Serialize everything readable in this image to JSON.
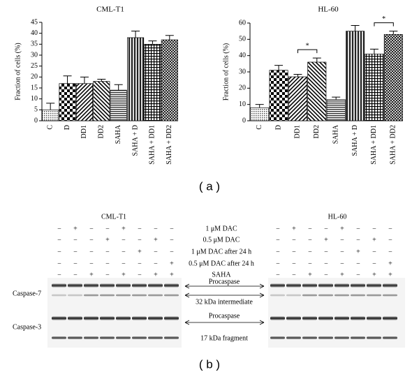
{
  "chart_data": [
    {
      "type": "bar",
      "title": "CML-T1",
      "y_label": "Fraction of cells (%)",
      "categories": [
        "C",
        "D",
        "DD1",
        "DD2",
        "SAHA",
        "SAHA + D",
        "SAHA + DD1",
        "SAHA + DD2"
      ],
      "values": [
        5,
        17,
        17,
        18,
        14,
        38,
        35,
        37
      ],
      "errors": [
        3,
        3.5,
        3,
        1,
        2.5,
        3,
        1.5,
        2
      ],
      "ylim": [
        0,
        45
      ],
      "yticks": [
        0,
        5,
        10,
        15,
        20,
        25,
        30,
        35,
        40,
        45
      ]
    },
    {
      "type": "bar",
      "title": "HL-60",
      "y_label": "Fraction of cells (%)",
      "categories": [
        "C",
        "D",
        "DD1",
        "DD2",
        "SAHA",
        "SAHA + D",
        "SAHA + DD1",
        "SAHA + DD2"
      ],
      "values": [
        8,
        31,
        27,
        36,
        13,
        55,
        41,
        53
      ],
      "errors": [
        2,
        3,
        1.5,
        2.5,
        1.5,
        3.5,
        3,
        2
      ],
      "ylim": [
        0,
        60
      ],
      "yticks": [
        0,
        10,
        20,
        30,
        40,
        50,
        60
      ],
      "annotations": [
        "*",
        "*"
      ]
    }
  ],
  "panel_labels": [
    "( a )",
    "( b )"
  ],
  "blot": {
    "left_title": "CML-T1",
    "right_title": "HL-60",
    "conditions": [
      "1 μM DAC",
      "0.5 μM DAC",
      "1 μM DAC after 24 h",
      "0.5 μM DAC after 24 h",
      "SAHA"
    ],
    "left_signs": [
      [
        "−",
        "+",
        "−",
        "−",
        "+",
        "−",
        "−",
        "−"
      ],
      [
        "−",
        "−",
        "−",
        "+",
        "−",
        "−",
        "+",
        "−"
      ],
      [
        "−",
        "−",
        "−",
        "−",
        "−",
        "+",
        "−",
        "−"
      ],
      [
        "−",
        "−",
        "−",
        "−",
        "−",
        "−",
        "−",
        "+"
      ],
      [
        "−",
        "−",
        "+",
        "−",
        "+",
        "−",
        "+",
        "+"
      ]
    ],
    "right_signs": [
      [
        "−",
        "+",
        "−",
        "−",
        "+",
        "−",
        "−",
        "−"
      ],
      [
        "−",
        "−",
        "−",
        "+",
        "−",
        "−",
        "+",
        "−"
      ],
      [
        "−",
        "−",
        "−",
        "−",
        "−",
        "+",
        "−",
        "−"
      ],
      [
        "−",
        "−",
        "−",
        "−",
        "−",
        "−",
        "−",
        "+"
      ],
      [
        "−",
        "−",
        "+",
        "−",
        "+",
        "−",
        "+",
        "+"
      ]
    ],
    "proteins": [
      "Caspase-7",
      "Caspase-3"
    ],
    "band_labels": [
      "Procaspase",
      "32 kDa intermediate",
      "Procaspase",
      "17 kDa fragment"
    ]
  }
}
